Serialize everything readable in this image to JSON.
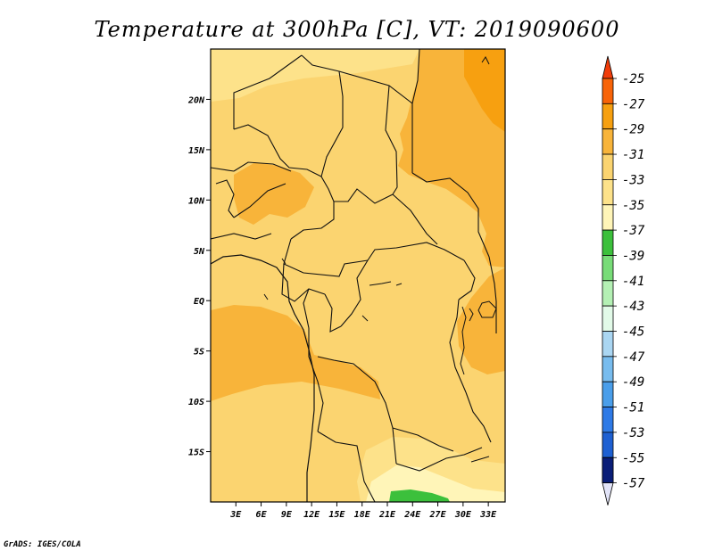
{
  "chart_data": {
    "type": "heatmap",
    "title": "Temperature at 300hPa [C], VT: 2019090600",
    "variable": "Temperature",
    "level": "300hPa",
    "units": "C",
    "valid_time": "2019090600",
    "x_ticks": [
      "3E",
      "6E",
      "9E",
      "12E",
      "15E",
      "18E",
      "21E",
      "24E",
      "27E",
      "30E",
      "33E"
    ],
    "y_ticks": [
      "20N",
      "15N",
      "10N",
      "5N",
      "EQ",
      "5S",
      "10S",
      "15S"
    ],
    "lon_range": [
      0,
      35
    ],
    "lat_range": [
      -20,
      25
    ],
    "colorbar": {
      "labels": [
        "-25",
        "-27",
        "-29",
        "-31",
        "-33",
        "-35",
        "-37",
        "-39",
        "-41",
        "-43",
        "-45",
        "-47",
        "-49",
        "-51",
        "-53",
        "-55",
        "-57"
      ],
      "bins": [
        {
          "range": "above -25",
          "color": "#f03c0a"
        },
        {
          "range": "-27 to -25",
          "color": "#f86408"
        },
        {
          "range": "-29 to -27",
          "color": "#f7a010"
        },
        {
          "range": "-31 to -29",
          "color": "#f8b43a"
        },
        {
          "range": "-33 to -31",
          "color": "#fbd470"
        },
        {
          "range": "-35 to -33",
          "color": "#fde28a"
        },
        {
          "range": "-37 to -35",
          "color": "#fff5b8"
        },
        {
          "range": "-39 to -37",
          "color": "#3cc03c"
        },
        {
          "range": "-41 to -39",
          "color": "#78dc78"
        },
        {
          "range": "-43 to -41",
          "color": "#b4f0b4"
        },
        {
          "range": "-45 to -43",
          "color": "#e2fae8"
        },
        {
          "range": "-47 to -45",
          "color": "#aad6f2"
        },
        {
          "range": "-49 to -47",
          "color": "#78bcee"
        },
        {
          "range": "-51 to -49",
          "color": "#4a9eea"
        },
        {
          "range": "-53 to -51",
          "color": "#2e7ae6"
        },
        {
          "range": "-55 to -53",
          "color": "#1e60d2"
        },
        {
          "range": "-57 to -55",
          "color": "#1446b4"
        },
        {
          "range": "below -57",
          "color": "#0a1e78"
        },
        {
          "range": "extend below",
          "color": "#e2e4f8"
        }
      ]
    },
    "regions": [
      {
        "name": "background",
        "range": "-33 to -31",
        "color": "#fbd470"
      },
      {
        "name": "sahara-north",
        "range": "-35 to -33",
        "color": "#fde28a"
      },
      {
        "name": "northeast-warm",
        "range": "-31 to -29",
        "color": "#f8b43a"
      },
      {
        "name": "northeast-corner",
        "range": "-29 to -27",
        "color": "#f7a010"
      },
      {
        "name": "nigeria-patch",
        "range": "-31 to -29",
        "color": "#f8b43a"
      },
      {
        "name": "atlantic-south",
        "range": "-31 to -29",
        "color": "#f8b43a"
      },
      {
        "name": "east-africa",
        "range": "-31 to -29",
        "color": "#f8b43a"
      },
      {
        "name": "zambia-cool",
        "range": "-35 to -33",
        "color": "#fde28a"
      },
      {
        "name": "south-cool",
        "range": "-37 to -35",
        "color": "#fff5b8"
      },
      {
        "name": "south-coldest",
        "range": "-39 to -37",
        "color": "#3cc03c"
      }
    ],
    "credit": "GrADS: IGES/COLA"
  }
}
